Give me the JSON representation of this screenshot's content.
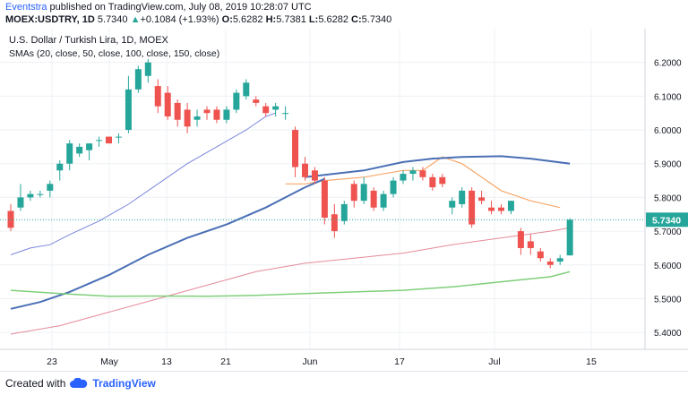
{
  "header": {
    "author": "Eventstra",
    "published_text": "published on TradingView.com, July 08, 2019 10:28:07 UTC",
    "symbol": "MOEX:USDTRY, 1D",
    "last": "5.7340",
    "change_arrow": "▲",
    "change": "+0.1084 (+1.93%)",
    "o_label": "O:",
    "o": "5.6282",
    "h_label": "H:",
    "h": "5.7381",
    "l_label": "L:",
    "l": "5.6282",
    "c_label": "C:",
    "c": "5.7340"
  },
  "footer": {
    "created_with": "Created with",
    "brand": "TradingView",
    "logo_icon": "tradingview-cloud-icon"
  },
  "colors": {
    "up": "#26a69a",
    "down": "#ef5350",
    "sma20": "#f9a86b",
    "sma50": "#4a6fb5",
    "sma100": "#7b86de",
    "sma150_pink": "#e58b9a",
    "sma_green": "#7fcf7a",
    "price_line": "#26a69a",
    "grid": "#eef0f4"
  },
  "chart_data": {
    "type": "candlestick",
    "title": "U.S. Dollar / Turkish Lira, 1D, MOEX",
    "subtitle": "SMAs (20, close, 50, close, 100, close, 150, close)",
    "x_ticks": [
      "23",
      "May",
      "13",
      "21",
      "Jun",
      "17",
      "Jul",
      "15"
    ],
    "y_ticks": [
      "6.2000",
      "6.1000",
      "6.0000",
      "5.9000",
      "5.8000",
      "5.7000",
      "5.6000",
      "5.5000",
      "5.4000"
    ],
    "ylim": [
      5.35,
      6.3
    ],
    "last_price_label": "5.7340",
    "grid": true,
    "candles": [
      {
        "o": 5.76,
        "h": 5.78,
        "l": 5.7,
        "c": 5.71
      },
      {
        "o": 5.77,
        "h": 5.84,
        "l": 5.76,
        "c": 5.8
      },
      {
        "o": 5.8,
        "h": 5.82,
        "l": 5.79,
        "c": 5.81
      },
      {
        "o": 5.81,
        "h": 5.82,
        "l": 5.8,
        "c": 5.81
      },
      {
        "o": 5.82,
        "h": 5.85,
        "l": 5.8,
        "c": 5.84
      },
      {
        "o": 5.88,
        "h": 5.91,
        "l": 5.85,
        "c": 5.9
      },
      {
        "o": 5.9,
        "h": 5.97,
        "l": 5.88,
        "c": 5.96
      },
      {
        "o": 5.93,
        "h": 5.96,
        "l": 5.92,
        "c": 5.95
      },
      {
        "o": 5.94,
        "h": 5.96,
        "l": 5.91,
        "c": 5.96
      },
      {
        "o": 5.97,
        "h": 5.98,
        "l": 5.95,
        "c": 5.97
      },
      {
        "o": 5.98,
        "h": 5.98,
        "l": 5.96,
        "c": 5.96
      },
      {
        "o": 5.98,
        "h": 5.99,
        "l": 5.96,
        "c": 5.98
      },
      {
        "o": 6.0,
        "h": 6.16,
        "l": 5.99,
        "c": 6.12
      },
      {
        "o": 6.12,
        "h": 6.19,
        "l": 6.11,
        "c": 6.18
      },
      {
        "o": 6.16,
        "h": 6.21,
        "l": 6.14,
        "c": 6.2
      },
      {
        "o": 6.13,
        "h": 6.15,
        "l": 6.05,
        "c": 6.07
      },
      {
        "o": 6.11,
        "h": 6.13,
        "l": 6.03,
        "c": 6.04
      },
      {
        "o": 6.08,
        "h": 6.09,
        "l": 6.01,
        "c": 6.03
      },
      {
        "o": 6.06,
        "h": 6.08,
        "l": 5.99,
        "c": 6.01
      },
      {
        "o": 6.03,
        "h": 6.06,
        "l": 6.01,
        "c": 6.04
      },
      {
        "o": 6.06,
        "h": 6.07,
        "l": 6.03,
        "c": 6.05
      },
      {
        "o": 6.06,
        "h": 6.07,
        "l": 6.02,
        "c": 6.03
      },
      {
        "o": 6.03,
        "h": 6.07,
        "l": 6.02,
        "c": 6.06
      },
      {
        "o": 6.06,
        "h": 6.12,
        "l": 6.05,
        "c": 6.11
      },
      {
        "o": 6.1,
        "h": 6.15,
        "l": 6.09,
        "c": 6.14
      },
      {
        "o": 6.09,
        "h": 6.1,
        "l": 6.07,
        "c": 6.08
      },
      {
        "o": 6.07,
        "h": 6.08,
        "l": 6.04,
        "c": 6.05
      },
      {
        "o": 6.06,
        "h": 6.08,
        "l": 6.04,
        "c": 6.07
      },
      {
        "o": 6.05,
        "h": 6.07,
        "l": 6.03,
        "c": 6.05
      },
      {
        "o": 6.0,
        "h": 6.01,
        "l": 5.86,
        "c": 5.89
      },
      {
        "o": 5.9,
        "h": 5.92,
        "l": 5.85,
        "c": 5.86
      },
      {
        "o": 5.88,
        "h": 5.89,
        "l": 5.84,
        "c": 5.85
      },
      {
        "o": 5.85,
        "h": 5.86,
        "l": 5.72,
        "c": 5.74
      },
      {
        "o": 5.75,
        "h": 5.78,
        "l": 5.68,
        "c": 5.7
      },
      {
        "o": 5.73,
        "h": 5.79,
        "l": 5.72,
        "c": 5.78
      },
      {
        "o": 5.84,
        "h": 5.85,
        "l": 5.77,
        "c": 5.79
      },
      {
        "o": 5.79,
        "h": 5.86,
        "l": 5.78,
        "c": 5.84
      },
      {
        "o": 5.82,
        "h": 5.83,
        "l": 5.76,
        "c": 5.77
      },
      {
        "o": 5.77,
        "h": 5.82,
        "l": 5.76,
        "c": 5.81
      },
      {
        "o": 5.81,
        "h": 5.86,
        "l": 5.8,
        "c": 5.85
      },
      {
        "o": 5.85,
        "h": 5.88,
        "l": 5.84,
        "c": 5.87
      },
      {
        "o": 5.87,
        "h": 5.89,
        "l": 5.85,
        "c": 5.88
      },
      {
        "o": 5.88,
        "h": 5.89,
        "l": 5.85,
        "c": 5.86
      },
      {
        "o": 5.86,
        "h": 5.87,
        "l": 5.82,
        "c": 5.83
      },
      {
        "o": 5.86,
        "h": 5.87,
        "l": 5.83,
        "c": 5.84
      },
      {
        "o": 5.77,
        "h": 5.8,
        "l": 5.75,
        "c": 5.79
      },
      {
        "o": 5.78,
        "h": 5.83,
        "l": 5.77,
        "c": 5.82
      },
      {
        "o": 5.82,
        "h": 5.83,
        "l": 5.71,
        "c": 5.72
      },
      {
        "o": 5.8,
        "h": 5.82,
        "l": 5.78,
        "c": 5.79
      },
      {
        "o": 5.77,
        "h": 5.79,
        "l": 5.75,
        "c": 5.76
      },
      {
        "o": 5.77,
        "h": 5.78,
        "l": 5.75,
        "c": 5.76
      },
      {
        "o": 5.76,
        "h": 5.79,
        "l": 5.75,
        "c": 5.79
      },
      {
        "o": 5.7,
        "h": 5.71,
        "l": 5.63,
        "c": 5.65
      },
      {
        "o": 5.67,
        "h": 5.69,
        "l": 5.63,
        "c": 5.65
      },
      {
        "o": 5.64,
        "h": 5.65,
        "l": 5.61,
        "c": 5.62
      },
      {
        "o": 5.61,
        "h": 5.62,
        "l": 5.59,
        "c": 5.6
      },
      {
        "o": 5.61,
        "h": 5.63,
        "l": 5.6,
        "c": 5.62
      },
      {
        "o": 5.6282,
        "h": 5.7381,
        "l": 5.6282,
        "c": 5.734
      }
    ],
    "sma_lines": [
      {
        "key": "sma20",
        "width": 1.2,
        "points": [
          [
            28,
            5.84
          ],
          [
            30,
            5.84
          ],
          [
            32,
            5.85
          ],
          [
            36,
            5.86
          ],
          [
            40,
            5.88
          ],
          [
            42,
            5.88
          ],
          [
            44,
            5.92
          ],
          [
            46,
            5.9
          ],
          [
            48,
            5.86
          ],
          [
            50,
            5.82
          ],
          [
            53,
            5.79
          ],
          [
            56,
            5.77
          ]
        ]
      },
      {
        "key": "sma50",
        "width": 2,
        "points": [
          [
            30,
            5.86
          ],
          [
            33,
            5.87
          ],
          [
            36,
            5.88
          ],
          [
            40,
            5.905
          ],
          [
            43,
            5.915
          ],
          [
            46,
            5.92
          ],
          [
            50,
            5.922
          ],
          [
            53,
            5.915
          ],
          [
            57,
            5.9
          ]
        ]
      },
      {
        "key": "sma100",
        "width": 1,
        "points": [
          [
            0,
            5.63
          ],
          [
            2,
            5.65
          ],
          [
            4,
            5.66
          ],
          [
            6,
            5.69
          ],
          [
            9,
            5.73
          ],
          [
            12,
            5.78
          ],
          [
            15,
            5.84
          ],
          [
            18,
            5.9
          ],
          [
            21,
            5.95
          ],
          [
            24,
            6.0
          ],
          [
            26,
            6.04
          ],
          [
            27,
            6.05
          ]
        ]
      },
      {
        "key": "sma50",
        "width": 2,
        "points": [
          [
            0,
            5.47
          ],
          [
            3,
            5.49
          ],
          [
            6,
            5.52
          ],
          [
            10,
            5.57
          ],
          [
            14,
            5.63
          ],
          [
            18,
            5.68
          ],
          [
            22,
            5.72
          ],
          [
            26,
            5.77
          ],
          [
            28,
            5.8
          ],
          [
            30,
            5.83
          ],
          [
            32,
            5.855
          ]
        ]
      },
      {
        "key": "sma150_pink",
        "width": 1,
        "points": [
          [
            0,
            5.395
          ],
          [
            5,
            5.42
          ],
          [
            10,
            5.46
          ],
          [
            15,
            5.5
          ],
          [
            20,
            5.54
          ],
          [
            25,
            5.58
          ],
          [
            30,
            5.605
          ],
          [
            35,
            5.62
          ],
          [
            40,
            5.635
          ],
          [
            45,
            5.66
          ],
          [
            50,
            5.68
          ],
          [
            55,
            5.7
          ],
          [
            57,
            5.71
          ]
        ]
      },
      {
        "key": "sma_green",
        "width": 1.5,
        "points": [
          [
            0,
            5.525
          ],
          [
            5,
            5.515
          ],
          [
            10,
            5.507
          ],
          [
            15,
            5.508
          ],
          [
            20,
            5.507
          ],
          [
            25,
            5.51
          ],
          [
            30,
            5.515
          ],
          [
            35,
            5.52
          ],
          [
            40,
            5.525
          ],
          [
            45,
            5.535
          ],
          [
            50,
            5.55
          ],
          [
            55,
            5.565
          ],
          [
            57,
            5.58
          ]
        ]
      }
    ]
  }
}
